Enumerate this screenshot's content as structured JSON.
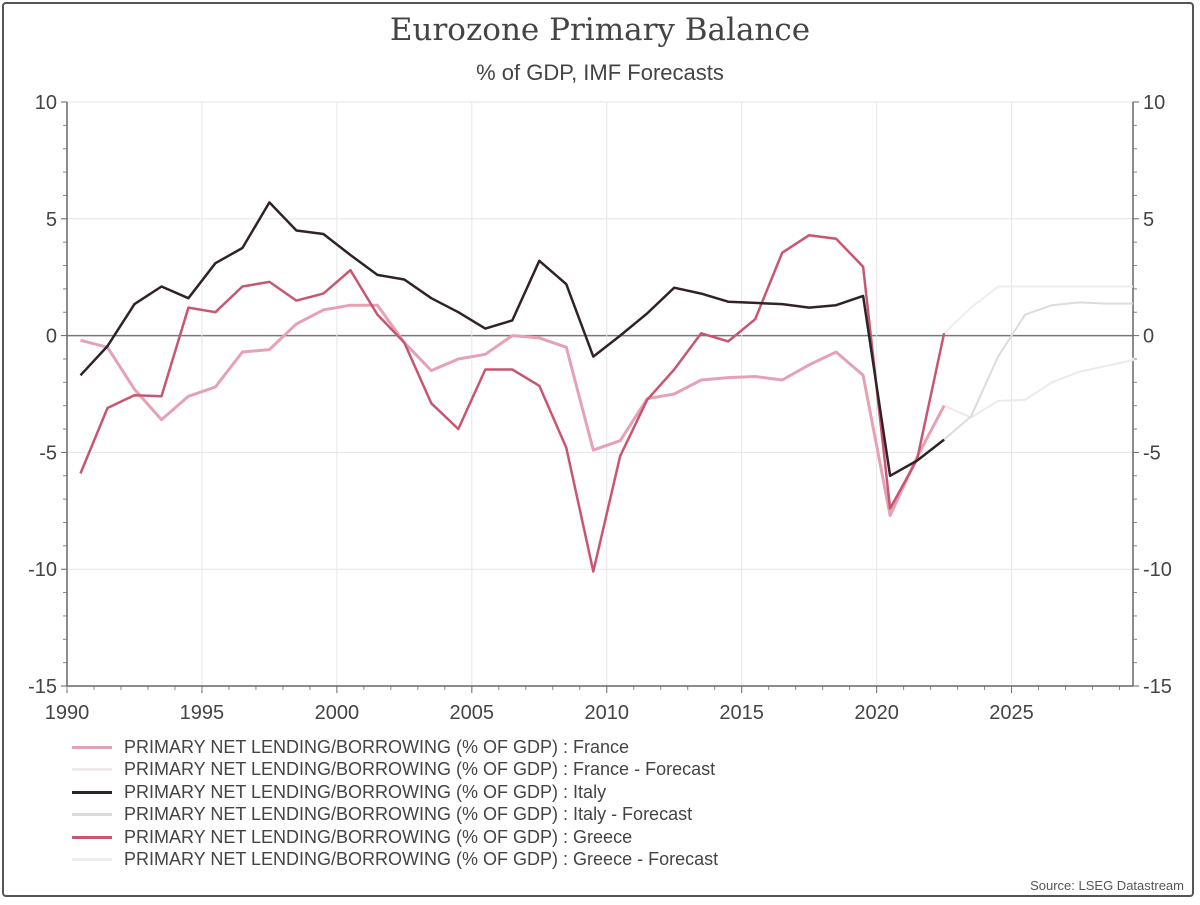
{
  "chart_data": {
    "type": "line",
    "title": "Eurozone Primary Balance",
    "subtitle": "% of GDP, IMF Forecasts",
    "xlabel": "",
    "ylabel": "",
    "xlim": [
      1990,
      2029.5
    ],
    "ylim": [
      -15,
      10
    ],
    "x_ticks": [
      "1990",
      "1995",
      "2000",
      "2005",
      "2010",
      "2015",
      "2020",
      "2025"
    ],
    "y_ticks": [
      "10",
      "5",
      "0",
      "-5",
      "-10",
      "-15"
    ],
    "grid": true,
    "legend_position": "bottom-left",
    "series": [
      {
        "name": "PRIMARY NET LENDING/BORROWING (% OF GDP) : France",
        "color": "#e6a2b4",
        "width": 3,
        "x": [
          1990,
          1991,
          1992,
          1993,
          1994,
          1995,
          1996,
          1997,
          1998,
          1999,
          2000,
          2001,
          2002,
          2003,
          2004,
          2005,
          2006,
          2007,
          2008,
          2009,
          2010,
          2011,
          2012,
          2013,
          2014,
          2015,
          2016,
          2017,
          2018,
          2019,
          2020,
          2021,
          2022
        ],
        "y": [
          -0.2,
          -0.5,
          -2.3,
          -3.6,
          -2.6,
          -2.2,
          -0.7,
          -0.6,
          0.5,
          1.1,
          1.3,
          1.3,
          -0.3,
          -1.5,
          -1.0,
          -0.8,
          0.0,
          -0.1,
          -0.5,
          -4.9,
          -4.5,
          -2.7,
          -2.5,
          -1.9,
          -1.8,
          -1.75,
          -1.9,
          -1.25,
          -0.7,
          -1.7,
          -7.7,
          -5.2,
          -3.0
        ]
      },
      {
        "name": "PRIMARY NET LENDING/BORROWING (% OF GDP) : France - Forecast",
        "color": "#efe9eb",
        "width": 2,
        "x": [
          2022,
          2023,
          2024,
          2025,
          2026,
          2027,
          2028,
          2029,
          2029.5
        ],
        "y": [
          -3.0,
          -3.5,
          -2.8,
          -2.75,
          -2.0,
          -1.55,
          -1.3,
          -1.05,
          -0.95
        ]
      },
      {
        "name": "PRIMARY NET LENDING/BORROWING (% OF GDP) : Italy",
        "color": "#2f2329",
        "width": 2.5,
        "x": [
          1990,
          1991,
          1992,
          1993,
          1994,
          1995,
          1996,
          1997,
          1998,
          1999,
          2000,
          2001,
          2002,
          2003,
          2004,
          2005,
          2006,
          2007,
          2008,
          2009,
          2010,
          2011,
          2012,
          2013,
          2014,
          2015,
          2016,
          2017,
          2018,
          2019,
          2020,
          2021,
          2022
        ],
        "y": [
          -1.7,
          -0.45,
          1.35,
          2.1,
          1.6,
          3.1,
          3.75,
          5.7,
          4.5,
          4.35,
          3.45,
          2.6,
          2.4,
          1.6,
          1.0,
          0.3,
          0.65,
          3.2,
          2.2,
          -0.9,
          0.0,
          0.95,
          2.05,
          1.8,
          1.45,
          1.4,
          1.35,
          1.2,
          1.3,
          1.7,
          -6.0,
          -5.35,
          -4.45
        ]
      },
      {
        "name": "PRIMARY NET LENDING/BORROWING (% OF GDP) : Italy - Forecast",
        "color": "#dedbdc",
        "width": 2,
        "x": [
          2022,
          2023,
          2024,
          2025,
          2026,
          2027,
          2028,
          2029,
          2029.5
        ],
        "y": [
          -4.45,
          -3.45,
          -0.9,
          0.9,
          1.3,
          1.42,
          1.37,
          1.37,
          1.37
        ]
      },
      {
        "name": "PRIMARY NET LENDING/BORROWING (% OF GDP) : Greece",
        "color": "#c95670",
        "width": 2.5,
        "x": [
          1990,
          1991,
          1992,
          1993,
          1994,
          1995,
          1996,
          1997,
          1998,
          1999,
          2000,
          2001,
          2002,
          2003,
          2004,
          2005,
          2006,
          2007,
          2008,
          2009,
          2010,
          2011,
          2012,
          2013,
          2014,
          2015,
          2016,
          2017,
          2018,
          2019,
          2020,
          2021,
          2022
        ],
        "y": [
          -5.9,
          -3.1,
          -2.55,
          -2.6,
          1.2,
          1.0,
          2.1,
          2.3,
          1.5,
          1.8,
          2.8,
          0.9,
          -0.3,
          -2.9,
          -4.0,
          -1.45,
          -1.45,
          -2.15,
          -4.8,
          -10.1,
          -5.15,
          -2.75,
          -1.45,
          0.1,
          -0.25,
          0.7,
          3.55,
          4.3,
          4.15,
          2.95,
          -7.4,
          -5.3,
          0.1
        ]
      },
      {
        "name": "PRIMARY NET LENDING/BORROWING (% OF GDP) : Greece - Forecast",
        "color": "#eeeeee",
        "width": 2,
        "x": [
          2022,
          2023,
          2024,
          2025,
          2026,
          2027,
          2028,
          2029,
          2029.5
        ],
        "y": [
          0.1,
          1.2,
          2.1,
          2.1,
          2.1,
          2.1,
          2.1,
          2.1,
          2.1
        ]
      }
    ],
    "source": "Source: LSEG Datastream"
  }
}
